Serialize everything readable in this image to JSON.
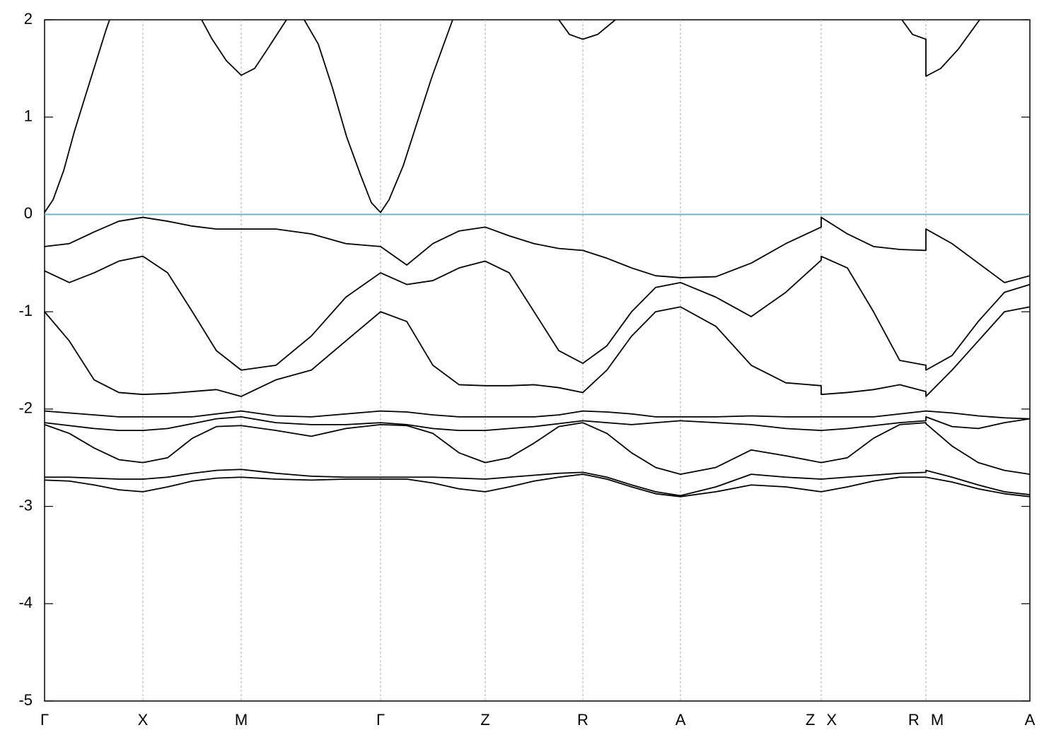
{
  "chart_data": {
    "type": "line",
    "xlim": [
      0,
      10
    ],
    "ylim": [
      -5,
      2
    ],
    "yticks": [
      2,
      1,
      0,
      -1,
      -2,
      -3,
      -4,
      -5
    ],
    "xticks": [
      {
        "value": 0,
        "label": "Γ"
      },
      {
        "value": 0.998,
        "label": "X"
      },
      {
        "value": 1.996,
        "label": "M"
      },
      {
        "value": 3.41,
        "label": "Γ"
      },
      {
        "value": 4.472,
        "label": "Z"
      },
      {
        "value": 5.463,
        "label": "R"
      },
      {
        "value": 6.454,
        "label": "A"
      },
      {
        "value": 7.882,
        "label": "Z X"
      },
      {
        "value": 8.945,
        "label": "R M"
      },
      {
        "value": 10,
        "label": "A"
      }
    ],
    "grid": "x",
    "fermi_level": {
      "y": 0,
      "color": "#5fb4c8"
    },
    "x": [
      0,
      0.251,
      0.503,
      0.754,
      0.998,
      1.249,
      1.5,
      1.744,
      1.996,
      2.348,
      2.707,
      3.058,
      3.41,
      3.676,
      3.941,
      4.207,
      4.472,
      4.716,
      4.968,
      5.219,
      5.463,
      5.707,
      5.958,
      6.202,
      6.454,
      6.813,
      7.172,
      7.523,
      7.882,
      7.882,
      8.148,
      8.413,
      8.679,
      8.945,
      8.945,
      9.21,
      9.476,
      9.742,
      10
    ],
    "series": [
      {
        "color": "#000000",
        "values": [
          -0.33,
          -0.3,
          -0.18,
          -0.07,
          -0.03,
          -0.07,
          -0.12,
          -0.15,
          -0.15,
          -0.15,
          -0.2,
          -0.3,
          -0.33,
          -0.52,
          -0.3,
          -0.17,
          -0.13,
          -0.22,
          -0.3,
          -0.35,
          -0.37,
          -0.45,
          -0.55,
          -0.63,
          -0.65,
          -0.64,
          -0.5,
          -0.3,
          -0.13,
          -0.03,
          -0.2,
          -0.33,
          -0.36,
          -0.37,
          -0.15,
          -0.3,
          -0.5,
          -0.7,
          -0.63
        ]
      },
      {
        "color": "#000000",
        "values": [
          -0.58,
          -0.7,
          -0.6,
          -0.48,
          -0.43,
          -0.6,
          -1.0,
          -1.4,
          -1.6,
          -1.55,
          -1.25,
          -0.85,
          -0.6,
          -0.72,
          -0.68,
          -0.55,
          -0.48,
          -0.6,
          -1.0,
          -1.4,
          -1.53,
          -1.35,
          -1.0,
          -0.75,
          -0.7,
          -0.85,
          -1.05,
          -0.8,
          -0.47,
          -0.43,
          -0.55,
          -1.0,
          -1.5,
          -1.55,
          -1.6,
          -1.45,
          -1.1,
          -0.8,
          -0.72
        ]
      },
      {
        "color": "#000000",
        "values": [
          -1.0,
          -1.3,
          -1.7,
          -1.83,
          -1.85,
          -1.84,
          -1.82,
          -1.8,
          -1.87,
          -1.7,
          -1.6,
          -1.3,
          -1.0,
          -1.1,
          -1.55,
          -1.75,
          -1.76,
          -1.76,
          -1.75,
          -1.78,
          -1.83,
          -1.6,
          -1.25,
          -1.0,
          -0.95,
          -1.15,
          -1.55,
          -1.73,
          -1.76,
          -1.85,
          -1.83,
          -1.8,
          -1.75,
          -1.82,
          -1.87,
          -1.6,
          -1.3,
          -1.0,
          -0.95
        ]
      },
      {
        "color": "#000000",
        "values": [
          -2.02,
          -2.04,
          -2.06,
          -2.08,
          -2.08,
          -2.08,
          -2.08,
          -2.05,
          -2.02,
          -2.07,
          -2.08,
          -2.05,
          -2.02,
          -2.03,
          -2.06,
          -2.08,
          -2.08,
          -2.08,
          -2.08,
          -2.06,
          -2.02,
          -2.03,
          -2.05,
          -2.08,
          -2.08,
          -2.08,
          -2.07,
          -2.08,
          -2.08,
          -2.08,
          -2.08,
          -2.08,
          -2.05,
          -2.02,
          -2.02,
          -2.04,
          -2.07,
          -2.09,
          -2.1
        ]
      },
      {
        "color": "#000000",
        "values": [
          -2.14,
          -2.17,
          -2.2,
          -2.22,
          -2.22,
          -2.2,
          -2.15,
          -2.1,
          -2.08,
          -2.14,
          -2.16,
          -2.16,
          -2.14,
          -2.16,
          -2.2,
          -2.22,
          -2.22,
          -2.2,
          -2.18,
          -2.15,
          -2.12,
          -2.14,
          -2.16,
          -2.14,
          -2.12,
          -2.14,
          -2.16,
          -2.2,
          -2.22,
          -2.22,
          -2.2,
          -2.17,
          -2.14,
          -2.12,
          -2.08,
          -2.18,
          -2.2,
          -2.14,
          -2.1
        ]
      },
      {
        "color": "#000000",
        "values": [
          -2.16,
          -2.25,
          -2.4,
          -2.52,
          -2.55,
          -2.5,
          -2.3,
          -2.18,
          -2.17,
          -2.22,
          -2.28,
          -2.2,
          -2.16,
          -2.17,
          -2.25,
          -2.45,
          -2.55,
          -2.5,
          -2.35,
          -2.18,
          -2.14,
          -2.25,
          -2.45,
          -2.6,
          -2.67,
          -2.6,
          -2.42,
          -2.48,
          -2.55,
          -2.55,
          -2.5,
          -2.3,
          -2.16,
          -2.14,
          -2.15,
          -2.38,
          -2.55,
          -2.63,
          -2.67
        ]
      },
      {
        "color": "#000000",
        "values": [
          -2.7,
          -2.7,
          -2.71,
          -2.72,
          -2.72,
          -2.7,
          -2.66,
          -2.63,
          -2.62,
          -2.66,
          -2.69,
          -2.7,
          -2.7,
          -2.7,
          -2.7,
          -2.71,
          -2.72,
          -2.7,
          -2.68,
          -2.66,
          -2.65,
          -2.7,
          -2.78,
          -2.85,
          -2.89,
          -2.8,
          -2.67,
          -2.7,
          -2.72,
          -2.72,
          -2.7,
          -2.68,
          -2.66,
          -2.65,
          -2.63,
          -2.7,
          -2.78,
          -2.85,
          -2.88
        ]
      },
      {
        "color": "#000000",
        "values": [
          -2.73,
          -2.74,
          -2.78,
          -2.83,
          -2.85,
          -2.8,
          -2.74,
          -2.71,
          -2.7,
          -2.72,
          -2.73,
          -2.72,
          -2.72,
          -2.72,
          -2.76,
          -2.82,
          -2.85,
          -2.8,
          -2.74,
          -2.7,
          -2.67,
          -2.72,
          -2.8,
          -2.87,
          -2.9,
          -2.85,
          -2.78,
          -2.8,
          -2.85,
          -2.85,
          -2.8,
          -2.74,
          -2.7,
          -2.7,
          -2.7,
          -2.75,
          -2.82,
          -2.87,
          -2.9
        ]
      },
      {
        "color": "#000000",
        "x": [
          0,
          0.086,
          0.194,
          0.302,
          0.409,
          0.517,
          0.625,
          0.66
        ],
        "values": [
          0.02,
          0.15,
          0.45,
          0.85,
          1.2,
          1.55,
          1.9,
          2.0
        ]
      },
      {
        "color": "#000000",
        "x": [
          1.594,
          1.701,
          1.845,
          1.996,
          2.132,
          2.276,
          2.455
        ],
        "values": [
          2.0,
          1.8,
          1.58,
          1.43,
          1.5,
          1.72,
          2.0
        ]
      },
      {
        "color": "#000000",
        "x": [
          2.635,
          2.778,
          2.922,
          3.065,
          3.209,
          3.317,
          3.41,
          3.496,
          3.64,
          3.783,
          3.927,
          4.034,
          4.142
        ],
        "values": [
          2.0,
          1.75,
          1.3,
          0.8,
          0.4,
          0.12,
          0.02,
          0.15,
          0.5,
          0.95,
          1.4,
          1.7,
          2.0
        ]
      },
      {
        "color": "#000000",
        "x": [
          5.219,
          5.327,
          5.463,
          5.614,
          5.793
        ],
        "values": [
          2.0,
          1.85,
          1.8,
          1.85,
          2.0
        ]
      },
      {
        "color": "#000000",
        "x": [
          8.701,
          8.809,
          8.945,
          8.945,
          9.095,
          9.275,
          9.49
        ],
        "values": [
          2.0,
          1.85,
          1.8,
          1.42,
          1.5,
          1.7,
          2.0
        ]
      }
    ]
  }
}
